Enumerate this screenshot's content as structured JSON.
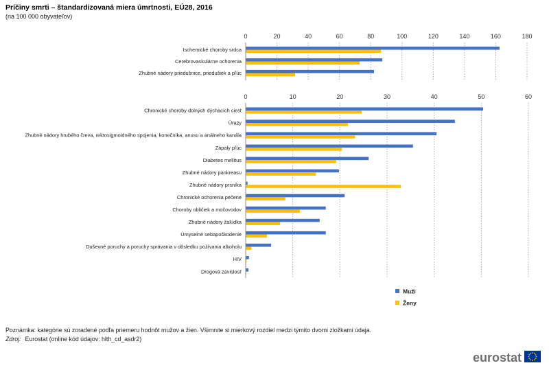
{
  "chart_data": {
    "type": "bar",
    "orientation": "horizontal",
    "title": "Príčiny smrti – štandardizovaná miera úmrtnosti, EÚ28, 2016",
    "subtitle": "(na 100 000 obyvateľov)",
    "legend_position": "bottom",
    "grid": true,
    "series": [
      {
        "name": "Muži",
        "color": "#4472c4"
      },
      {
        "name": "Ženy",
        "color": "#ffc000"
      }
    ],
    "panels": [
      {
        "xlim": [
          0,
          180
        ],
        "xticks": [
          0,
          20,
          40,
          60,
          80,
          100,
          120,
          140,
          160,
          180
        ],
        "categories": [
          "Ischemické choroby srdca",
          "Cerebrovaskulárne ochorenia",
          "Zhubné nádory priedušnice, priedušiek a pľúc"
        ],
        "values": [
          [
            162.4,
            87.4,
            82.1
          ],
          [
            86.5,
            72.9,
            31.6
          ]
        ]
      },
      {
        "xlim": [
          0,
          60
        ],
        "xticks": [
          0,
          10,
          20,
          30,
          40,
          50,
          60
        ],
        "categories": [
          "Chronické choroby dolných dýchacích ciest",
          "Úrazy",
          "Zhubné nádory hrubého čreva, rektosigmoidného spojenia, konečníka, anusu a análneho kanála",
          "Zápaly pľúc",
          "Diabetes mellitus",
          "Zhubné nádory pankreasu",
          "Zhubné nádory prsníka",
          "Chronické ochorenia pečene",
          "Choroby obličiek a močovodov",
          "Zhubné nádory žalúdka",
          "Úmyselné sebapoškodenie",
          "Duševné poruchy a poruchy správania v dôsledku požívania alkoholu",
          "HIV",
          "Drogová závislosť"
        ],
        "values": [
          [
            50.4,
            44.4,
            40.5,
            35.5,
            26.1,
            19.8,
            0.4,
            21.0,
            17.0,
            15.7,
            17.0,
            5.4,
            0.7,
            0.6
          ],
          [
            24.6,
            21.7,
            23.2,
            20.4,
            19.2,
            14.9,
            32.9,
            8.4,
            11.5,
            7.3,
            4.5,
            1.2,
            0.2,
            0.1
          ]
        ]
      }
    ]
  },
  "footer": {
    "note": "Poznámka: kategórie sú zoradené podľa priemeru hodnôt mužov a žien. Všimnite si mierkový rozdiel medzi týmito dvomi zložkami údaja.",
    "source_label": "Zdroj:",
    "source_text": "Eurostat (online kód údajov: hlth_cd_asdr2)"
  },
  "logo": {
    "text": "eurostat",
    "flag_color": "#003399",
    "star_color": "#ffcc00"
  }
}
